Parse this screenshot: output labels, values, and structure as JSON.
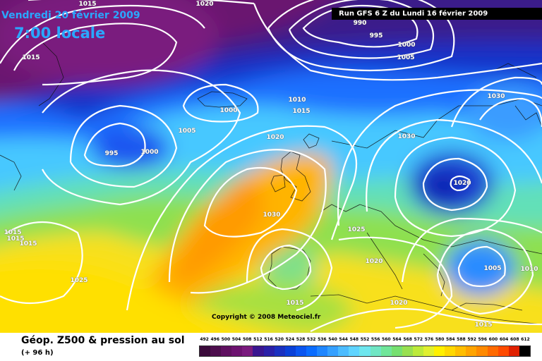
{
  "header": {
    "date": "Vendredi 20 février 2009",
    "time": "7:00 locale",
    "run": "Run GFS 6 Z du Lundi 16 février 2009"
  },
  "copyright": "Copyright © 2008 Meteociel.fr",
  "footer": {
    "title": "Géop. Z500 & pression au sol",
    "subtitle": "(+ 96 h)"
  },
  "isobar_labels": [
    "1015",
    "1020",
    "1015",
    "990",
    "995",
    "1000",
    "1005",
    "1000",
    "1005",
    "995",
    "1000",
    "1010",
    "1015",
    "1030",
    "1020",
    "1030",
    "1020",
    "1025",
    "1020",
    "1015",
    "1015",
    "1020",
    "1005",
    "1010",
    "1025",
    "1015",
    "1015",
    "1015",
    "1030"
  ],
  "scale": {
    "labels": [
      "492",
      "496",
      "500",
      "504",
      "508",
      "512",
      "516",
      "520",
      "524",
      "528",
      "532",
      "536",
      "540",
      "544",
      "548",
      "552",
      "556",
      "560",
      "564",
      "568",
      "572",
      "576",
      "580",
      "584",
      "588",
      "592",
      "596",
      "600",
      "604",
      "608",
      "612"
    ],
    "colors": [
      "#3a0a3a",
      "#4d0e4d",
      "#5f1060",
      "#6d1270",
      "#7a1a7e",
      "#3a1590",
      "#2a20a8",
      "#1a30c0",
      "#0a40d8",
      "#0a55f0",
      "#0a6cff",
      "#1f86ff",
      "#35a0ff",
      "#4cbcff",
      "#5fd4ff",
      "#6ee6ee",
      "#70e6c4",
      "#70e69a",
      "#76e070",
      "#98e050",
      "#bcea3a",
      "#e0f030",
      "#fff000",
      "#ffd800",
      "#ffbe00",
      "#ffa400",
      "#ff8a00",
      "#ff6a00",
      "#ff4a00",
      "#e02000",
      "#000000"
    ]
  },
  "colors": {
    "run_box": "#000000",
    "title_accent": "#2aa7ff",
    "isobar": "#ffffff"
  }
}
